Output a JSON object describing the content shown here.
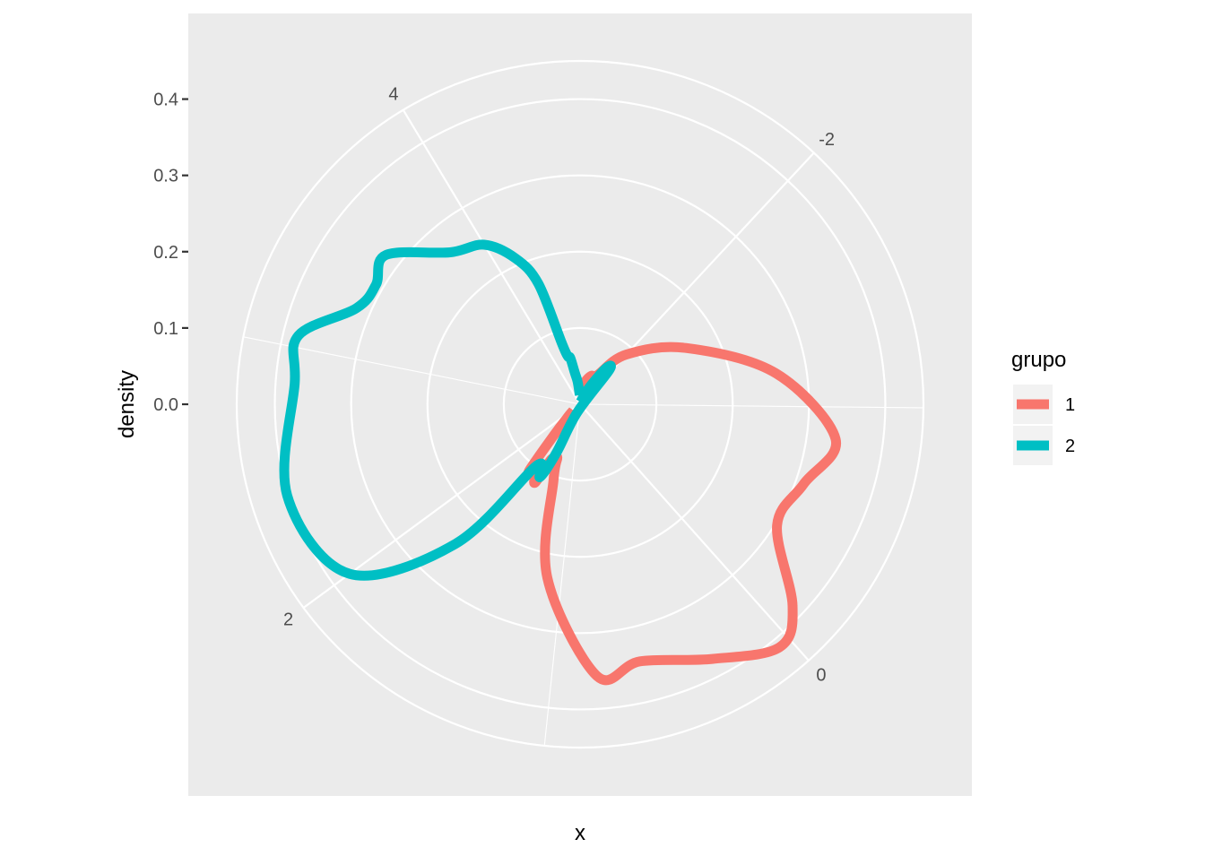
{
  "chart_data": {
    "type": "line",
    "coord": "polar",
    "theta_axis": {
      "label": "x",
      "ticks": [
        -2,
        0,
        2,
        4
      ],
      "tick_labels": [
        "-2",
        "0",
        "2",
        "4"
      ],
      "range": [
        -2.9,
        4.65
      ],
      "direction": "clockwise"
    },
    "r_axis": {
      "label": "density",
      "ticks": [
        0.0,
        0.1,
        0.2,
        0.3,
        0.4
      ],
      "tick_labels": [
        "0.0",
        "0.1",
        "0.2",
        "0.3",
        "0.4"
      ],
      "range": [
        0,
        0.45
      ]
    },
    "grid": true,
    "legend": {
      "title": "grupo",
      "position": "right",
      "entries": [
        {
          "label": "1",
          "color": "#F8766D"
        },
        {
          "label": "2",
          "color": "#00BFC4"
        }
      ]
    },
    "series": [
      {
        "name": "1",
        "color": "#F8766D",
        "x": [
          -2.8,
          -2.6,
          -2.45,
          -2.25,
          -2.0,
          -1.6,
          -1.2,
          -0.85,
          -0.6,
          -0.35,
          -0.1,
          0.05,
          0.3,
          0.6,
          0.8,
          1.1,
          1.28,
          1.36,
          1.42,
          1.46,
          1.5,
          1.55,
          1.6,
          1.66,
          1.72,
          1.78,
          1.83,
          1.88
        ],
        "density": [
          0.018,
          0.032,
          0.04,
          0.045,
          0.089,
          0.157,
          0.26,
          0.338,
          0.311,
          0.303,
          0.384,
          0.412,
          0.376,
          0.346,
          0.357,
          0.231,
          0.105,
          0.076,
          0.082,
          0.083,
          0.118,
          0.111,
          0.103,
          0.11,
          0.051,
          0.026,
          0.019,
          0.012
        ]
      },
      {
        "name": "2",
        "color": "#00BFC4",
        "x": [
          -2.7,
          -2.3,
          -2.15,
          -2.05,
          1.3,
          1.42,
          1.48,
          1.62,
          1.75,
          2.0,
          2.4,
          2.85,
          3.05,
          3.25,
          3.4,
          3.55,
          3.8,
          4.0,
          4.15,
          4.25,
          4.3,
          4.35,
          4.4,
          4.45,
          4.52,
          4.6
        ],
        "density": [
          0.003,
          0.025,
          0.058,
          0.058,
          0.012,
          0.071,
          0.109,
          0.1,
          0.245,
          0.375,
          0.402,
          0.375,
          0.38,
          0.319,
          0.31,
          0.321,
          0.262,
          0.244,
          0.209,
          0.167,
          0.084,
          0.065,
          0.062,
          0.042,
          0.03,
          0.012
        ]
      }
    ]
  }
}
